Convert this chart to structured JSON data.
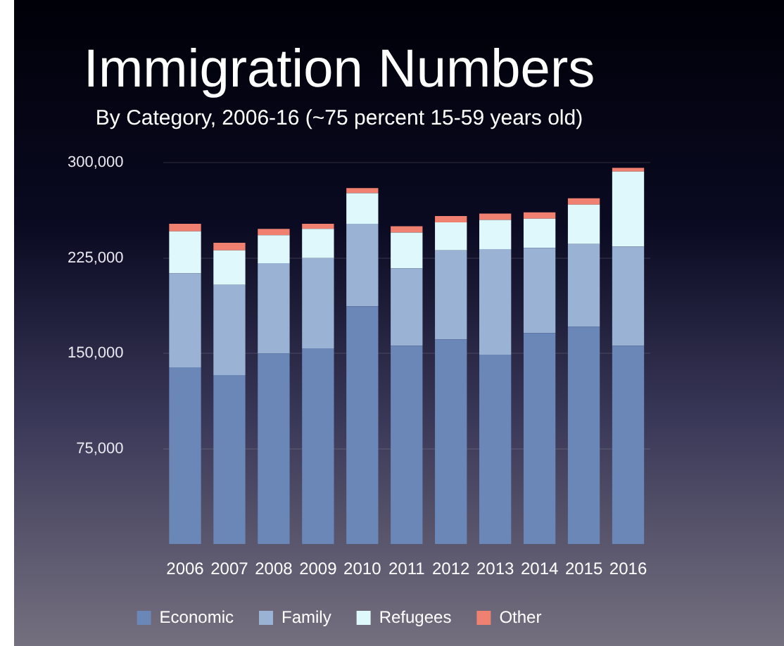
{
  "chart_data": {
    "type": "bar",
    "title": "Immigration Numbers",
    "subtitle": "By Category, 2006-16 (~75 percent 15-59 years old)",
    "categories": [
      "2006",
      "2007",
      "2008",
      "2009",
      "2010",
      "2011",
      "2012",
      "2013",
      "2014",
      "2015",
      "2016"
    ],
    "stacked": true,
    "series": [
      {
        "name": "Economic",
        "color": "#6a87b8",
        "values": [
          139000,
          133000,
          150000,
          154000,
          187000,
          156000,
          161000,
          149000,
          166000,
          171000,
          156000
        ]
      },
      {
        "name": "Family",
        "color": "#9ab3d5",
        "values": [
          74000,
          71000,
          71000,
          71000,
          65000,
          61000,
          70000,
          83000,
          67000,
          65000,
          78000
        ]
      },
      {
        "name": "Refugees",
        "color": "#dff8fb",
        "values": [
          33000,
          27000,
          22000,
          23000,
          24000,
          28000,
          22000,
          23000,
          23000,
          31000,
          59000
        ]
      },
      {
        "name": "Other",
        "color": "#f08070",
        "values": [
          6000,
          6000,
          5000,
          4000,
          4000,
          5000,
          5000,
          5000,
          5000,
          5000,
          3000
        ]
      }
    ],
    "ylim": [
      0,
      300000
    ],
    "yticks": [
      {
        "value": 75000,
        "label": "75,000"
      },
      {
        "value": 150000,
        "label": "150,000"
      },
      {
        "value": 225000,
        "label": "225,000"
      },
      {
        "value": 300000,
        "label": "300,000"
      }
    ],
    "grid": "y",
    "legend": "bottom"
  }
}
